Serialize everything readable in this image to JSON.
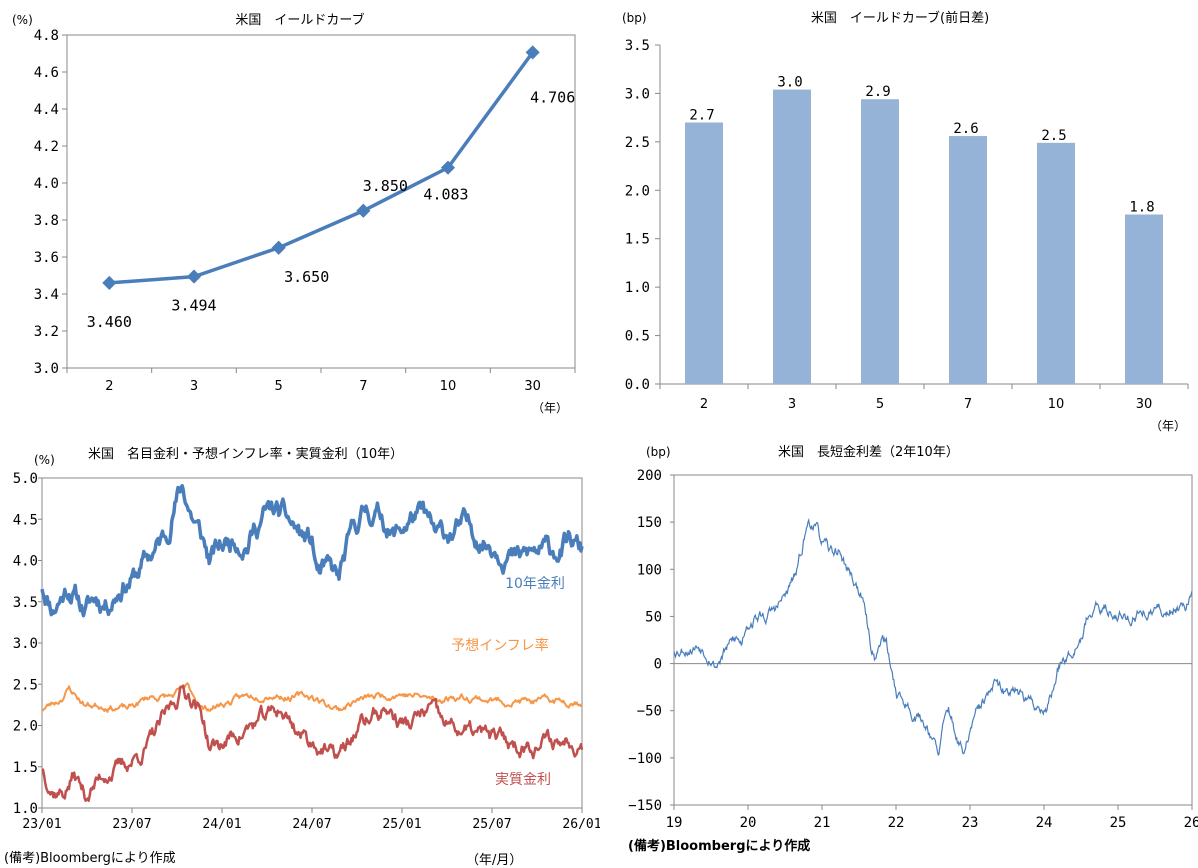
{
  "note": "(備考)Bloombergにより作成",
  "chart_data": [
    {
      "id": "yield_curve",
      "type": "line",
      "title": "米国　イールドカーブ",
      "ylabel": "(%)",
      "xlabel": "（年）",
      "categories": [
        "2",
        "3",
        "5",
        "7",
        "10",
        "30"
      ],
      "values": [
        3.46,
        3.494,
        3.65,
        3.85,
        4.083,
        4.706
      ],
      "data_labels": [
        "3.460",
        "3.494",
        "3.650",
        "3.850",
        "4.083",
        "4.706"
      ],
      "ylim": [
        3.0,
        4.8
      ],
      "yticks": [
        "3.0",
        "3.2",
        "3.4",
        "3.6",
        "3.8",
        "4.0",
        "4.2",
        "4.4",
        "4.6",
        "4.8"
      ],
      "color": "#4a7ebb"
    },
    {
      "id": "yield_change",
      "type": "bar",
      "title": "米国　イールドカーブ(前日差)",
      "ylabel": "(bp)",
      "xlabel": "（年）",
      "categories": [
        "2",
        "3",
        "5",
        "7",
        "10",
        "30"
      ],
      "values": [
        2.7,
        3.04,
        2.94,
        2.56,
        2.49,
        1.75
      ],
      "data_labels": [
        "2.7",
        "3.0",
        "2.9",
        "2.6",
        "2.5",
        "1.8"
      ],
      "ylim": [
        0,
        3.5
      ],
      "yticks": [
        "0.0",
        "0.5",
        "1.0",
        "1.5",
        "2.0",
        "2.5",
        "3.0",
        "3.5"
      ],
      "color": "#95b3d7"
    },
    {
      "id": "rates_10y",
      "type": "line",
      "title": "米国　名目金利・予想インフレ率・実質金利（10年）",
      "ylabel": "(%)",
      "xlabel": "（年/月）",
      "x_ticks": [
        "23/01",
        "23/07",
        "24/01",
        "24/07",
        "25/01",
        "25/07",
        "26/01"
      ],
      "ylim": [
        1.0,
        5.0
      ],
      "yticks": [
        "1.0",
        "1.5",
        "2.0",
        "2.5",
        "3.0",
        "3.5",
        "4.0",
        "4.5",
        "5.0"
      ],
      "series": [
        {
          "name": "10年金利",
          "color": "#4a7ebb",
          "keypoints": [
            [
              0,
              3.7
            ],
            [
              0.02,
              3.45
            ],
            [
              0.05,
              3.7
            ],
            [
              0.08,
              3.4
            ],
            [
              0.1,
              3.55
            ],
            [
              0.12,
              3.5
            ],
            [
              0.15,
              3.75
            ],
            [
              0.17,
              3.8
            ],
            [
              0.2,
              4.05
            ],
            [
              0.23,
              4.3
            ],
            [
              0.245,
              4.7
            ],
            [
              0.26,
              4.9
            ],
            [
              0.275,
              4.6
            ],
            [
              0.3,
              4.2
            ],
            [
              0.31,
              4.0
            ],
            [
              0.33,
              4.15
            ],
            [
              0.36,
              4.3
            ],
            [
              0.38,
              4.25
            ],
            [
              0.41,
              4.55
            ],
            [
              0.43,
              4.6
            ],
            [
              0.45,
              4.5
            ],
            [
              0.48,
              4.3
            ],
            [
              0.5,
              4.2
            ],
            [
              0.51,
              3.85
            ],
            [
              0.53,
              3.85
            ],
            [
              0.55,
              3.75
            ],
            [
              0.56,
              4.0
            ],
            [
              0.58,
              4.4
            ],
            [
              0.6,
              4.6
            ],
            [
              0.63,
              4.55
            ],
            [
              0.65,
              4.3
            ],
            [
              0.66,
              4.35
            ],
            [
              0.69,
              4.55
            ],
            [
              0.71,
              4.5
            ],
            [
              0.73,
              4.25
            ],
            [
              0.76,
              4.35
            ],
            [
              0.78,
              4.4
            ],
            [
              0.8,
              4.35
            ],
            [
              0.82,
              4.25
            ],
            [
              0.84,
              4.2
            ],
            [
              0.86,
              4.15
            ],
            [
              0.88,
              4.0
            ],
            [
              0.9,
              4.05
            ],
            [
              0.92,
              4.1
            ],
            [
              0.94,
              4.1
            ],
            [
              0.96,
              4.15
            ],
            [
              0.98,
              4.2
            ],
            [
              1.0,
              4.1
            ]
          ]
        },
        {
          "name": "予想インフレ率",
          "color": "#f79646",
          "keypoints": [
            [
              0,
              2.2
            ],
            [
              0.03,
              2.3
            ],
            [
              0.05,
              2.45
            ],
            [
              0.08,
              2.25
            ],
            [
              0.12,
              2.25
            ],
            [
              0.16,
              2.2
            ],
            [
              0.2,
              2.35
            ],
            [
              0.24,
              2.35
            ],
            [
              0.27,
              2.45
            ],
            [
              0.3,
              2.2
            ],
            [
              0.33,
              2.25
            ],
            [
              0.38,
              2.35
            ],
            [
              0.42,
              2.4
            ],
            [
              0.46,
              2.35
            ],
            [
              0.5,
              2.35
            ],
            [
              0.53,
              2.25
            ],
            [
              0.55,
              2.2
            ],
            [
              0.58,
              2.3
            ],
            [
              0.62,
              2.35
            ],
            [
              0.66,
              2.4
            ],
            [
              0.7,
              2.35
            ],
            [
              0.73,
              2.3
            ],
            [
              0.76,
              2.35
            ],
            [
              0.8,
              2.35
            ],
            [
              0.84,
              2.3
            ],
            [
              0.88,
              2.3
            ],
            [
              0.92,
              2.28
            ],
            [
              0.96,
              2.3
            ],
            [
              1.0,
              2.3
            ]
          ]
        },
        {
          "name": "実質金利",
          "color": "#c0504d",
          "keypoints": [
            [
              0,
              1.5
            ],
            [
              0.02,
              1.25
            ],
            [
              0.04,
              1.2
            ],
            [
              0.06,
              1.4
            ],
            [
              0.08,
              1.15
            ],
            [
              0.1,
              1.3
            ],
            [
              0.12,
              1.45
            ],
            [
              0.15,
              1.5
            ],
            [
              0.18,
              1.65
            ],
            [
              0.2,
              1.8
            ],
            [
              0.23,
              2.1
            ],
            [
              0.26,
              2.45
            ],
            [
              0.28,
              2.35
            ],
            [
              0.3,
              2.05
            ],
            [
              0.31,
              1.75
            ],
            [
              0.33,
              1.75
            ],
            [
              0.36,
              1.9
            ],
            [
              0.39,
              2.0
            ],
            [
              0.42,
              2.1
            ],
            [
              0.44,
              2.2
            ],
            [
              0.46,
              2.05
            ],
            [
              0.48,
              1.9
            ],
            [
              0.5,
              1.8
            ],
            [
              0.52,
              1.75
            ],
            [
              0.54,
              1.6
            ],
            [
              0.56,
              1.7
            ],
            [
              0.59,
              2.0
            ],
            [
              0.62,
              2.15
            ],
            [
              0.64,
              2.2
            ],
            [
              0.66,
              2.05
            ],
            [
              0.68,
              2.0
            ],
            [
              0.7,
              2.1
            ],
            [
              0.72,
              2.2
            ],
            [
              0.74,
              2.0
            ],
            [
              0.77,
              1.95
            ],
            [
              0.8,
              1.9
            ],
            [
              0.83,
              1.85
            ],
            [
              0.86,
              1.8
            ],
            [
              0.88,
              1.75
            ],
            [
              0.9,
              1.8
            ],
            [
              0.93,
              1.8
            ],
            [
              0.96,
              1.8
            ],
            [
              0.98,
              1.85
            ],
            [
              1.0,
              1.8
            ]
          ]
        }
      ]
    },
    {
      "id": "term_spread",
      "type": "line",
      "title": "米国　長短金利差（2年10年）",
      "ylabel": "(bp)",
      "x_ticks": [
        "19",
        "20",
        "21",
        "22",
        "23",
        "24",
        "25",
        "26"
      ],
      "ylim": [
        -150,
        200
      ],
      "yticks": [
        "200",
        "150",
        "100",
        "50",
        "0",
        "−50",
        "−100",
        "−150"
      ],
      "series": [
        {
          "name": "2年10年",
          "color": "#4a7ebb",
          "keypoints": [
            [
              0,
              15
            ],
            [
              0.02,
              18
            ],
            [
              0.05,
              20
            ],
            [
              0.07,
              12
            ],
            [
              0.08,
              0
            ],
            [
              0.1,
              15
            ],
            [
              0.12,
              25
            ],
            [
              0.13,
              20
            ],
            [
              0.14,
              45
            ],
            [
              0.16,
              50
            ],
            [
              0.18,
              50
            ],
            [
              0.2,
              60
            ],
            [
              0.22,
              75
            ],
            [
              0.24,
              100
            ],
            [
              0.25,
              130
            ],
            [
              0.26,
              150
            ],
            [
              0.27,
              150
            ],
            [
              0.28,
              135
            ],
            [
              0.3,
              115
            ],
            [
              0.32,
              120
            ],
            [
              0.33,
              105
            ],
            [
              0.34,
              95
            ],
            [
              0.36,
              75
            ],
            [
              0.37,
              50
            ],
            [
              0.38,
              20
            ],
            [
              0.39,
              5
            ],
            [
              0.4,
              30
            ],
            [
              0.41,
              20
            ],
            [
              0.42,
              -10
            ],
            [
              0.43,
              -30
            ],
            [
              0.45,
              -45
            ],
            [
              0.47,
              -55
            ],
            [
              0.48,
              -60
            ],
            [
              0.5,
              -75
            ],
            [
              0.51,
              -100
            ],
            [
              0.52,
              -70
            ],
            [
              0.53,
              -50
            ],
            [
              0.55,
              -85
            ],
            [
              0.56,
              -100
            ],
            [
              0.57,
              -75
            ],
            [
              0.58,
              -60
            ],
            [
              0.6,
              -40
            ],
            [
              0.62,
              -25
            ],
            [
              0.64,
              -35
            ],
            [
              0.66,
              -20
            ],
            [
              0.68,
              -40
            ],
            [
              0.7,
              -45
            ],
            [
              0.72,
              -45
            ],
            [
              0.73,
              -30
            ],
            [
              0.74,
              -10
            ],
            [
              0.75,
              10
            ],
            [
              0.76,
              10
            ],
            [
              0.77,
              20
            ],
            [
              0.79,
              40
            ],
            [
              0.8,
              55
            ],
            [
              0.82,
              55
            ],
            [
              0.85,
              55
            ],
            [
              0.88,
              50
            ],
            [
              0.92,
              55
            ],
            [
              0.95,
              55
            ],
            [
              0.98,
              65
            ],
            [
              1.0,
              70
            ]
          ]
        }
      ]
    }
  ]
}
